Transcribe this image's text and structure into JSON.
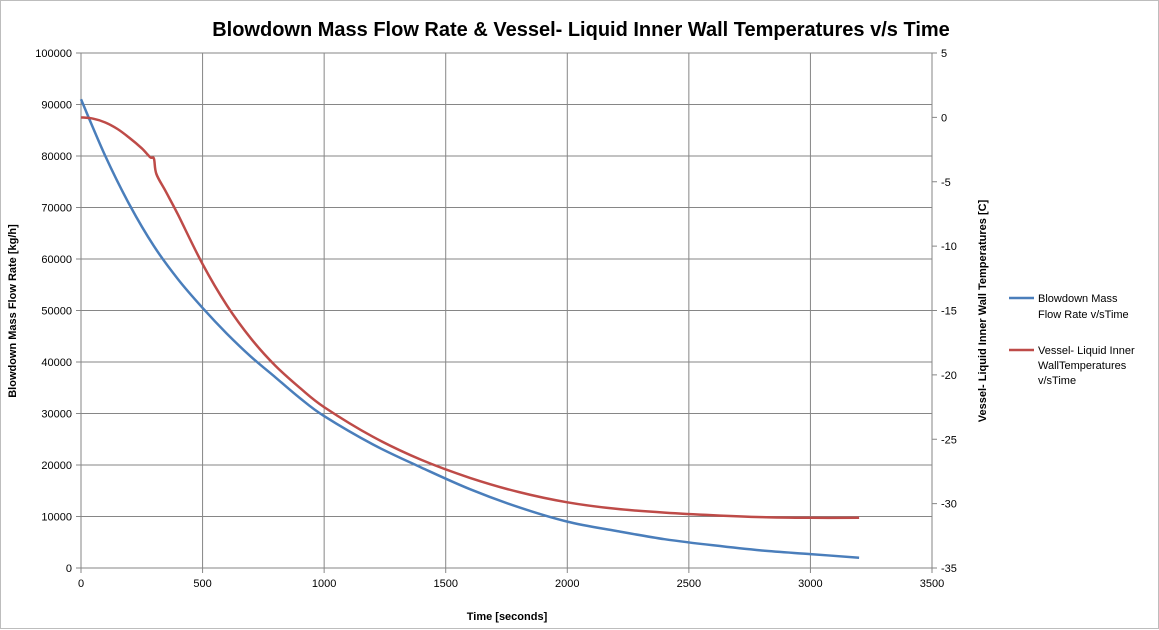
{
  "chart_data": {
    "type": "line",
    "title": "Blowdown Mass Flow Rate & Vessel- Liquid Inner Wall Temperatures v/s Time",
    "xlabel": "Time [seconds]",
    "ylabel": "Blowdown Mass Flow Rate [kg/h]",
    "y2label": "Vessel- Liquid Inner Wall Temperatures [C]",
    "xlim": [
      0,
      3500
    ],
    "ylim": [
      0,
      100000
    ],
    "y2lim": [
      -35,
      5
    ],
    "xticks": [
      "0",
      "500",
      "1000",
      "1500",
      "2000",
      "2500",
      "3000",
      "3500"
    ],
    "yticks": [
      "0",
      "10000",
      "20000",
      "30000",
      "40000",
      "50000",
      "60000",
      "70000",
      "80000",
      "90000",
      "100000"
    ],
    "y2ticks": [
      "-35",
      "-30",
      "-25",
      "-20",
      "-15",
      "-10",
      "-5",
      "0",
      "5"
    ],
    "grid": true,
    "legend_position": "right",
    "series": [
      {
        "name": "Blowdown Mass Flow Rate v/sTime",
        "color": "#4a7ebb",
        "axis": "left",
        "x": [
          0,
          100,
          200,
          300,
          400,
          500,
          600,
          700,
          800,
          900,
          1000,
          1200,
          1400,
          1600,
          1800,
          2000,
          2200,
          2400,
          2600,
          2800,
          3000,
          3200
        ],
        "y": [
          91000,
          80000,
          70500,
          62500,
          56000,
          50500,
          45500,
          41000,
          37000,
          33000,
          29500,
          24000,
          19500,
          15300,
          11800,
          9000,
          7200,
          5600,
          4400,
          3400,
          2700,
          2000
        ]
      },
      {
        "name": "Vessel- Liquid Inner Wall Temperatures v/sTime",
        "color": "#be4b48",
        "axis": "right",
        "x": [
          0,
          50,
          100,
          150,
          200,
          250,
          285,
          300,
          310,
          350,
          400,
          500,
          600,
          700,
          800,
          900,
          1000,
          1200,
          1400,
          1600,
          1800,
          2000,
          2200,
          2400,
          2600,
          2800,
          3000,
          3200
        ],
        "y": [
          0,
          -0.1,
          -0.4,
          -0.9,
          -1.6,
          -2.4,
          -3.1,
          -3.2,
          -4.4,
          -5.8,
          -7.6,
          -11.4,
          -14.6,
          -17.2,
          -19.3,
          -21.0,
          -22.5,
          -24.8,
          -26.6,
          -28.0,
          -29.1,
          -29.9,
          -30.4,
          -30.7,
          -30.9,
          -31.05,
          -31.1,
          -31.1
        ]
      }
    ]
  }
}
